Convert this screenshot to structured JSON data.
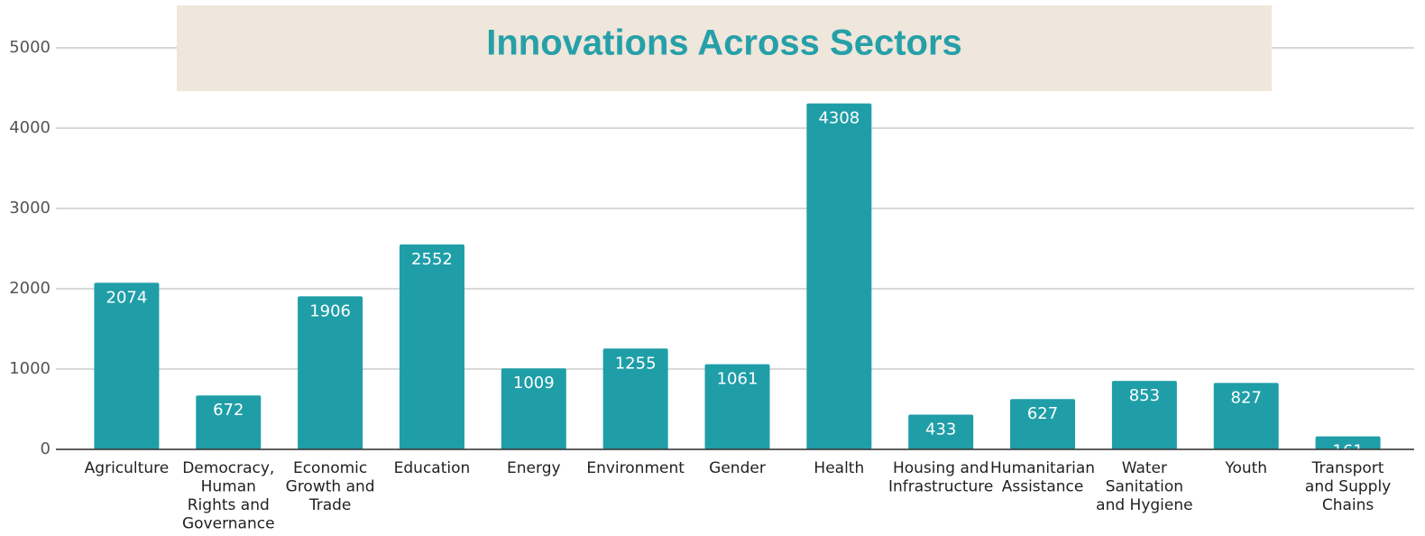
{
  "chart_data": {
    "type": "bar",
    "title": "Innovations Across Sectors",
    "categories": [
      "Agriculture",
      "Democracy, Human Rights and Governance",
      "Economic Growth and Trade",
      "Education",
      "Energy",
      "Environment",
      "Gender",
      "Health",
      "Housing and Infrastructure",
      "Humanitarian Assistance",
      "Water Sanitation and Hygiene",
      "Youth",
      "Transport and Supply Chains"
    ],
    "values": [
      2074,
      672,
      1906,
      2552,
      1009,
      1255,
      1061,
      4308,
      433,
      627,
      853,
      827,
      161
    ],
    "color": "#1f9ea8",
    "ylim": [
      0,
      5000
    ],
    "yticks": [
      0,
      1000,
      2000,
      3000,
      4000,
      5000
    ],
    "grid": true
  }
}
